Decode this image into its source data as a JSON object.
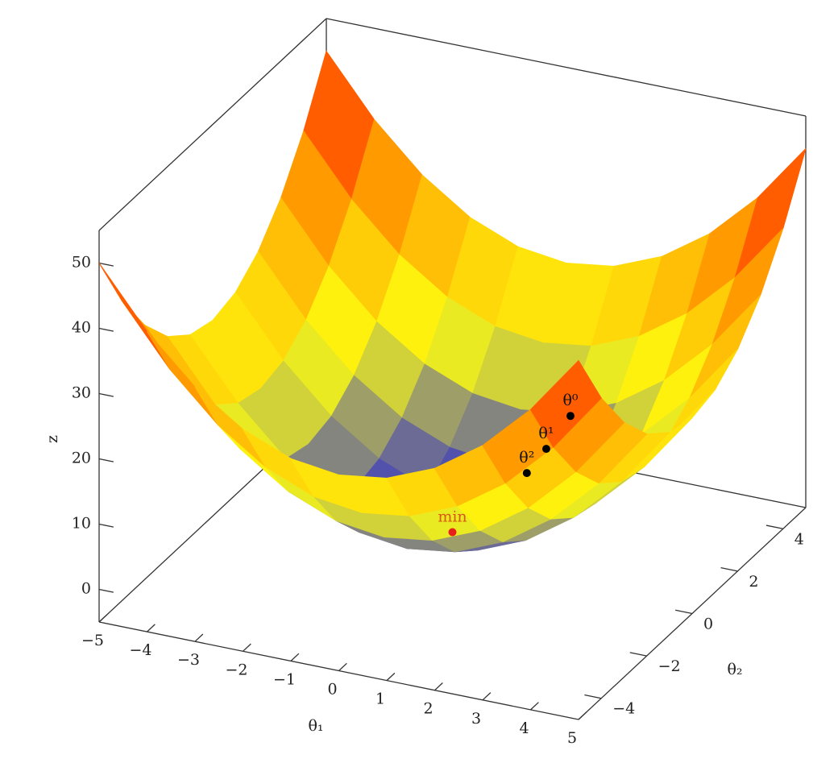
{
  "chart_data": {
    "type": "surface3d",
    "xlabel": "θ₁",
    "ylabel": "θ₂",
    "zlabel": "z",
    "xlim": [
      -5,
      5
    ],
    "ylim": [
      -5,
      5
    ],
    "zlim": [
      -5,
      55
    ],
    "xticks": [
      {
        "value": -5,
        "label": "−5"
      },
      {
        "value": -4,
        "label": "−4"
      },
      {
        "value": -3,
        "label": "−3"
      },
      {
        "value": -2,
        "label": "−2"
      },
      {
        "value": -1,
        "label": "−1"
      },
      0,
      1,
      2,
      3,
      4,
      5
    ],
    "yticks": [
      {
        "value": -4,
        "label": "−4"
      },
      {
        "value": -2,
        "label": "−2"
      },
      0,
      2,
      4
    ],
    "zticks": [
      0,
      10,
      20,
      30,
      40,
      50
    ],
    "colormap": [
      "#2c2cd0",
      "#ffff10",
      "#ff9800",
      "#ff1800"
    ],
    "x": [
      -5,
      -4,
      -3,
      -2,
      -1,
      0,
      1,
      2,
      3,
      4,
      5
    ],
    "y": [
      -5,
      -4,
      -3,
      -2,
      -1,
      0,
      1,
      2,
      3,
      4,
      5
    ],
    "z": [
      [
        50,
        41,
        34,
        29,
        26,
        25,
        26,
        29,
        34,
        41,
        50
      ],
      [
        41,
        32,
        25,
        20,
        17,
        16,
        17,
        20,
        25,
        32,
        41
      ],
      [
        34,
        25,
        18,
        13,
        10,
        9,
        10,
        13,
        18,
        25,
        34
      ],
      [
        29,
        20,
        13,
        8,
        5,
        4,
        5,
        8,
        13,
        20,
        29
      ],
      [
        26,
        17,
        10,
        5,
        2,
        1,
        2,
        5,
        10,
        17,
        26
      ],
      [
        25,
        16,
        9,
        4,
        1,
        0,
        1,
        4,
        9,
        16,
        25
      ],
      [
        26,
        17,
        10,
        5,
        2,
        1,
        2,
        5,
        10,
        17,
        26
      ],
      [
        29,
        20,
        13,
        8,
        5,
        4,
        5,
        8,
        13,
        20,
        29
      ],
      [
        34,
        25,
        18,
        13,
        10,
        9,
        10,
        13,
        18,
        25,
        34
      ],
      [
        41,
        32,
        25,
        20,
        17,
        16,
        17,
        20,
        25,
        32,
        41
      ],
      [
        50,
        41,
        34,
        29,
        26,
        25,
        26,
        29,
        34,
        41,
        50
      ]
    ],
    "points": [
      {
        "label": "θ⁰",
        "color": "#000000",
        "x": 4.5,
        "y": -4.3,
        "z": 38.5
      },
      {
        "label": "θ¹",
        "color": "#000000",
        "x": 3.9,
        "y": -4.1,
        "z": 31.9
      },
      {
        "label": "θ²",
        "color": "#000000",
        "x": 3.4,
        "y": -3.9,
        "z": 26.8
      },
      {
        "label": "min",
        "color": "#e8201c",
        "x": 0,
        "y": 0,
        "z": 0
      }
    ]
  }
}
